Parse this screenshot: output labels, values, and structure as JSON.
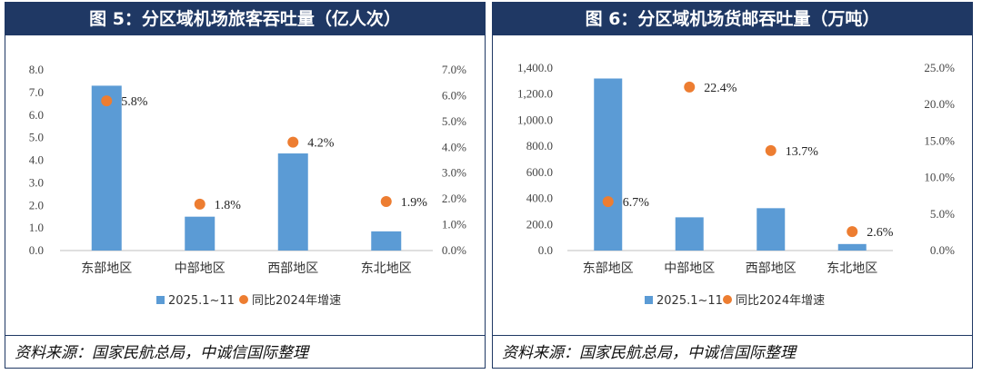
{
  "source_note": "资料来源：国家民航总局，中诚信国际整理",
  "colors": {
    "header": "#1f3864",
    "bar": "#5b9bd5",
    "dot": "#ed7d31",
    "axis": "#bfbfbf"
  },
  "chart_data": [
    {
      "type": "bar",
      "title": "图 5：分区域机场旅客吞吐量（亿人次）",
      "categories": [
        "东部地区",
        "中部地区",
        "西部地区",
        "东北地区"
      ],
      "series": [
        {
          "name": "2025.1~11",
          "kind": "bar",
          "axis": "left",
          "values": [
            7.3,
            1.5,
            4.3,
            0.85
          ]
        },
        {
          "name": "同比2024年增速",
          "kind": "scatter",
          "axis": "right",
          "values": [
            0.058,
            0.018,
            0.042,
            0.019
          ],
          "labels": [
            "5.8%",
            "1.8%",
            "4.2%",
            "1.9%"
          ]
        }
      ],
      "left_axis": {
        "min": 0,
        "max": 8,
        "ticks": [
          "0.0",
          "1.0",
          "2.0",
          "3.0",
          "4.0",
          "5.0",
          "6.0",
          "7.0",
          "8.0"
        ]
      },
      "right_axis": {
        "min": 0,
        "max": 0.07,
        "ticks": [
          "0.0%",
          "1.0%",
          "2.0%",
          "3.0%",
          "4.0%",
          "5.0%",
          "6.0%",
          "7.0%"
        ]
      },
      "legend": {
        "bar_label": "2025.1~11",
        "dot_label": "同比2024年增速",
        "position": "bottom"
      }
    },
    {
      "type": "bar",
      "title": "图 6：分区域机场货邮吞吐量（万吨）",
      "categories": [
        "东部地区",
        "中部地区",
        "西部地区",
        "东北地区"
      ],
      "series": [
        {
          "name": "2025.1~11",
          "kind": "bar",
          "axis": "left",
          "values": [
            1320,
            255,
            325,
            50
          ]
        },
        {
          "name": "同比2024年增速",
          "kind": "scatter",
          "axis": "right",
          "values": [
            0.067,
            0.224,
            0.137,
            0.026
          ],
          "labels": [
            "6.7%",
            "22.4%",
            "13.7%",
            "2.6%"
          ]
        }
      ],
      "left_axis": {
        "min": 0,
        "max": 1400,
        "ticks": [
          "0.0",
          "200.0",
          "400.0",
          "600.0",
          "800.0",
          "1,000.0",
          "1,200.0",
          "1,400.0"
        ]
      },
      "right_axis": {
        "min": 0,
        "max": 0.25,
        "ticks": [
          "0.0%",
          "5.0%",
          "10.0%",
          "15.0%",
          "20.0%",
          "25.0%"
        ]
      },
      "legend": {
        "bar_label": "2025.1~11",
        "dot_label": "同比2024年增速",
        "position": "bottom"
      }
    }
  ]
}
